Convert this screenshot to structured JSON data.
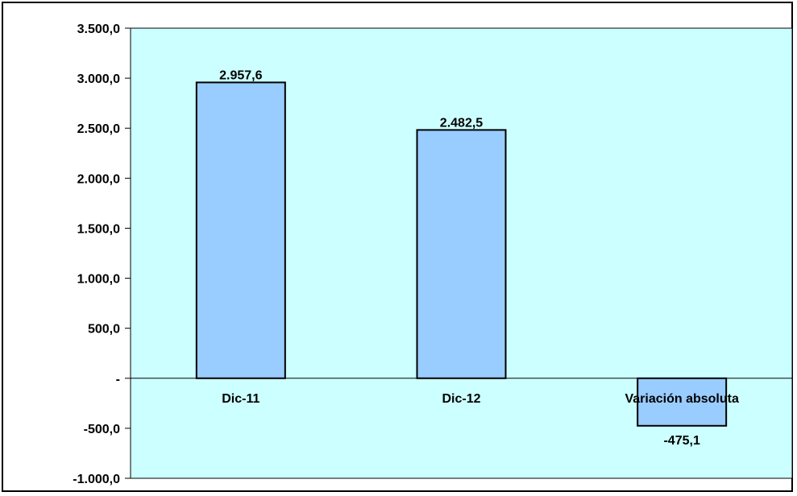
{
  "chart_data": {
    "type": "bar",
    "categories": [
      "Dic-11",
      "Dic-12",
      "Variación absoluta"
    ],
    "values": [
      2957.6,
      2482.5,
      -475.1
    ],
    "value_labels": [
      "2.957,6",
      "2.482,5",
      "-475,1"
    ],
    "ylim": [
      -1000,
      3500
    ],
    "yticks": [
      3500,
      3000,
      2500,
      2000,
      1500,
      1000,
      500,
      0,
      -500,
      -1000
    ],
    "ytick_labels": [
      "3.500,0",
      "3.000,0",
      "2.500,0",
      "2.000,0",
      "1.500,0",
      "1.000,0",
      "500,0",
      "-",
      "-500,0",
      "-1.000,0"
    ],
    "grid": false,
    "legend": "none",
    "colors": {
      "plot_background": "#ccffff",
      "bar_fill": "#99ccff",
      "bar_stroke": "#000000"
    }
  }
}
